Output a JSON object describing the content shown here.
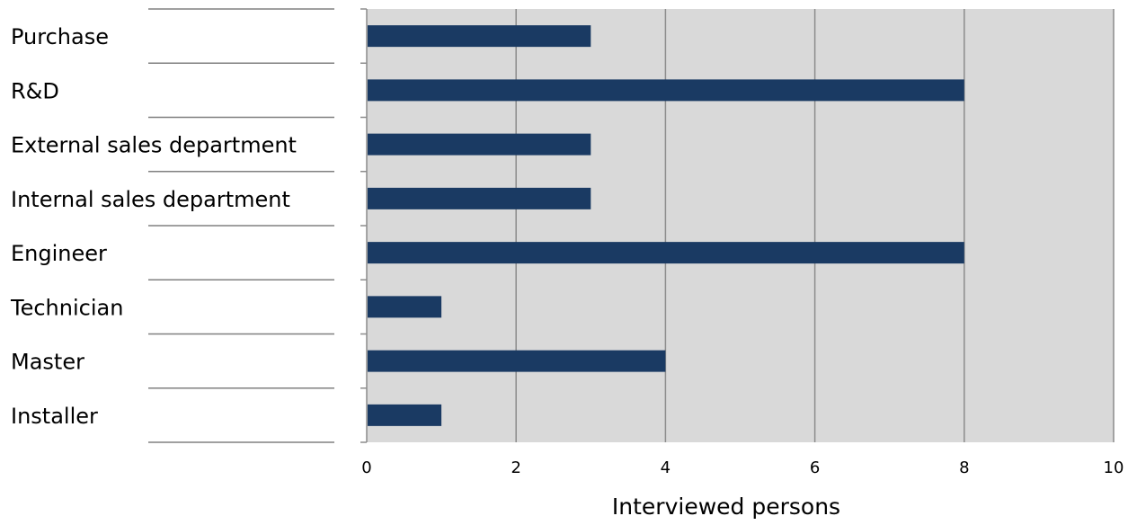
{
  "chart_data": {
    "type": "bar",
    "orientation": "horizontal",
    "categories": [
      "Purchase",
      "R&D",
      "External sales department",
      "Internal sales department",
      "Engineer",
      "Technician",
      "Master",
      "Installer"
    ],
    "values": [
      3,
      8,
      3,
      3,
      8,
      1,
      4,
      1
    ],
    "xlabel": "Interviewed persons",
    "ylabel": "",
    "xlim": [
      0,
      10
    ],
    "xticks": [
      "0",
      "2",
      "4",
      "6",
      "8",
      "10"
    ],
    "grid": true,
    "legend": "none",
    "bar_color": "#1a3a63",
    "plot_background": "#d9d9d9",
    "grid_color": "#8c8c8c"
  }
}
